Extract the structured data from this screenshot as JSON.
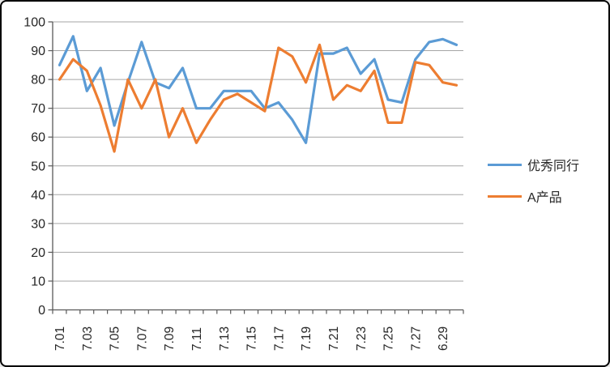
{
  "chart_data": {
    "type": "line",
    "title": "",
    "n_points": 30,
    "x_label_every": 2,
    "x_tick_labels": [
      "7.01",
      "7.03",
      "7.05",
      "7.07",
      "7.09",
      "7.11",
      "7.13",
      "7.15",
      "7.17",
      "7.19",
      "7.21",
      "7.23",
      "7.25",
      "7.27",
      "6.29"
    ],
    "y_tick_labels": [
      "0",
      "10",
      "20",
      "30",
      "40",
      "50",
      "60",
      "70",
      "80",
      "90",
      "100"
    ],
    "ylim": [
      0,
      100
    ],
    "ytick_step": 10,
    "grid": true,
    "legend_position": "right",
    "series": [
      {
        "name": "优秀同行",
        "color": "#5B9BD5",
        "values": [
          85,
          95,
          76,
          84,
          64,
          79,
          93,
          79,
          77,
          84,
          70,
          70,
          76,
          76,
          76,
          70,
          72,
          66,
          58,
          89,
          89,
          91,
          82,
          87,
          73,
          72,
          87,
          93,
          94,
          92
        ]
      },
      {
        "name": "A产品",
        "color": "#ED7D31",
        "values": [
          80,
          87,
          83,
          71,
          55,
          80,
          70,
          80,
          60,
          70,
          58,
          66,
          73,
          75,
          72,
          69,
          91,
          88,
          79,
          92,
          73,
          78,
          76,
          83,
          65,
          65,
          86,
          85,
          79,
          78
        ]
      }
    ],
    "colors": {
      "grid": "#A6A6A6",
      "axis": "#595959",
      "text": "#262626",
      "background": "#FFFFFF",
      "border": "#000000"
    }
  }
}
